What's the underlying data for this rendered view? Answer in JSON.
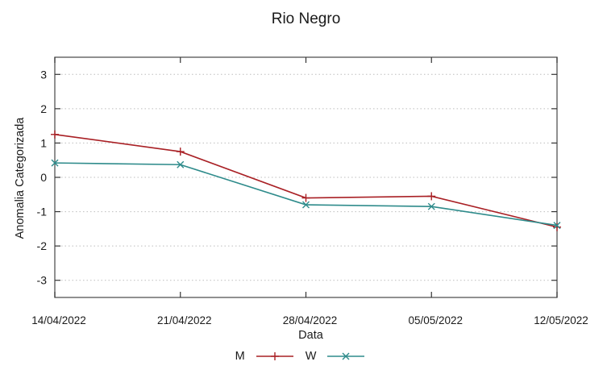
{
  "chart_data": {
    "type": "line",
    "title": "Rio Negro",
    "xlabel": "Data",
    "ylabel": "Anomalia Categorizada",
    "categories": [
      "14/04/2022",
      "21/04/2022",
      "28/04/2022",
      "05/05/2022",
      "12/05/2022"
    ],
    "series": [
      {
        "name": "M",
        "color": "#a92025",
        "marker": "plus",
        "values": [
          1.25,
          0.75,
          -0.6,
          -0.55,
          -1.45
        ]
      },
      {
        "name": "W",
        "color": "#2e8b8b",
        "marker": "cross",
        "values": [
          0.42,
          0.37,
          -0.8,
          -0.85,
          -1.4
        ]
      }
    ],
    "yticks": [
      3,
      2,
      1,
      0,
      -1,
      -2,
      -3
    ],
    "ylim": [
      -3.5,
      3.5
    ],
    "grid": "horizontal-dotted",
    "legend_position": "bottom-center",
    "colors": {
      "grid": "#bdbdbd",
      "border": "#555555",
      "tick": "#333333",
      "text": "#1a1a1a",
      "background": "#ffffff"
    }
  }
}
